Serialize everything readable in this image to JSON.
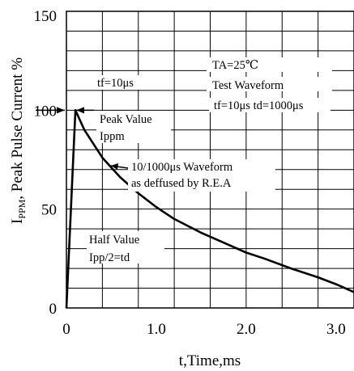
{
  "chart_data": {
    "type": "line",
    "title": "",
    "xlabel": "t,Time,ms",
    "ylabel_main": "I",
    "ylabel_sub": "PPM",
    "ylabel_rest": ", Peak Pulse Current %",
    "xlim": [
      0,
      3.2
    ],
    "ylim": [
      0,
      150
    ],
    "x_tick_labels": [
      {
        "x": 0,
        "label": "0"
      },
      {
        "x": 1.0,
        "label": "1.0"
      },
      {
        "x": 2.0,
        "label": "2.0"
      },
      {
        "x": 3.0,
        "label": "3.0"
      }
    ],
    "y_tick_labels": [
      {
        "y": 0,
        "label": "0"
      },
      {
        "y": 50,
        "label": "50"
      },
      {
        "y": 100,
        "label": "100"
      },
      {
        "y": 150,
        "label": "150"
      }
    ],
    "grid": true,
    "series": [
      {
        "x": [
          0,
          0.1,
          0.2,
          0.4,
          0.6,
          0.8,
          1.0,
          1.2,
          1.5,
          1.8,
          2.0,
          2.2,
          2.5,
          2.8,
          3.0,
          3.2
        ],
        "y": [
          0,
          100,
          90,
          76,
          66,
          58,
          51,
          45,
          38,
          32,
          28,
          25,
          20,
          15.5,
          12,
          8
        ]
      }
    ],
    "annotations": {
      "tf": "tf=10μs",
      "ta": "TA=25℃",
      "test_waveform": "Test Waveform",
      "test_params": "tf=10μs  td=1000μs",
      "peak_value": "Peak Value",
      "ippm": "Ippm",
      "waveform_line1": "10/1000μs Waveform",
      "waveform_line2": "as deffused by R.E.A",
      "half_value": "Half  Value",
      "half_def": "Ipp/2=td"
    }
  }
}
